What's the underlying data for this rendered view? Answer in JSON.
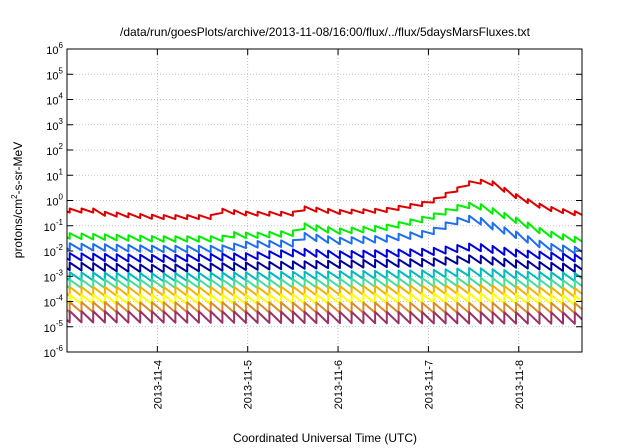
{
  "chart_data": {
    "type": "line",
    "title": "/data/run/goesPlots/archive/2013-11-08/16:00/flux/../flux/5daysMarsFluxes.txt",
    "xlabel": "Coordinated Universal Time (UTC)",
    "ylabel_parts": {
      "pre": "protons/cm",
      "sup": "2",
      "post": "-s-sr-MeV"
    },
    "x_unit": "days since 2013-11-03 00:00 UTC",
    "xlim": [
      0.0,
      5.7
    ],
    "x_ticks": [
      {
        "label": "2013-11-4",
        "value": 1.0
      },
      {
        "label": "2013-11-5",
        "value": 2.0
      },
      {
        "label": "2013-11-6",
        "value": 3.0
      },
      {
        "label": "2013-11-7",
        "value": 4.0
      },
      {
        "label": "2013-11-8",
        "value": 5.0
      }
    ],
    "y_scale": "log",
    "ylim": [
      1e-06,
      1000000.0
    ],
    "y_ticks": [
      {
        "base": "10",
        "exp": "-6",
        "value": 1e-06
      },
      {
        "base": "10",
        "exp": "-5",
        "value": 1e-05
      },
      {
        "base": "10",
        "exp": "-4",
        "value": 0.0001
      },
      {
        "base": "10",
        "exp": "-3",
        "value": 0.001
      },
      {
        "base": "10",
        "exp": "-2",
        "value": 0.01
      },
      {
        "base": "10",
        "exp": "-1",
        "value": 0.1
      },
      {
        "base": "10",
        "exp": "0",
        "value": 1
      },
      {
        "base": "10",
        "exp": "1",
        "value": 10
      },
      {
        "base": "10",
        "exp": "2",
        "value": 100
      },
      {
        "base": "10",
        "exp": "3",
        "value": 1000
      },
      {
        "base": "10",
        "exp": "4",
        "value": 10000
      },
      {
        "base": "10",
        "exp": "5",
        "value": 100000
      },
      {
        "base": "10",
        "exp": "6",
        "value": 1000000
      }
    ],
    "grid": true,
    "sawtooth_period_days": 0.13,
    "series": [
      {
        "color": "#dd0000",
        "width": 2.0,
        "knots": [
          [
            0,
            0.4
          ],
          [
            0.3,
            0.4
          ],
          [
            0.4,
            0.3
          ],
          [
            1.0,
            0.22
          ],
          [
            1.6,
            0.22
          ],
          [
            1.7,
            0.4
          ],
          [
            2.0,
            0.3
          ],
          [
            2.5,
            0.3
          ],
          [
            2.6,
            0.5
          ],
          [
            3.0,
            0.35
          ],
          [
            3.5,
            0.4
          ],
          [
            4.0,
            0.8
          ],
          [
            4.3,
            2.5
          ],
          [
            4.5,
            6.0
          ],
          [
            4.7,
            5.0
          ],
          [
            5.0,
            1.3
          ],
          [
            5.3,
            0.5
          ],
          [
            5.7,
            0.28
          ]
        ]
      },
      {
        "color": "#00ee00",
        "width": 2.0,
        "knots": [
          [
            0,
            0.04
          ],
          [
            1.0,
            0.03
          ],
          [
            1.7,
            0.03
          ],
          [
            1.9,
            0.05
          ],
          [
            2.0,
            0.04
          ],
          [
            2.5,
            0.05
          ],
          [
            2.6,
            0.1
          ],
          [
            3.0,
            0.06
          ],
          [
            3.5,
            0.08
          ],
          [
            4.0,
            0.2
          ],
          [
            4.3,
            0.5
          ],
          [
            4.5,
            0.7
          ],
          [
            4.7,
            0.4
          ],
          [
            5.0,
            0.15
          ],
          [
            5.3,
            0.05
          ],
          [
            5.7,
            0.025
          ]
        ]
      },
      {
        "color": "#1e6fee",
        "width": 2.0,
        "knots": [
          [
            0,
            0.015
          ],
          [
            1.0,
            0.012
          ],
          [
            1.7,
            0.012
          ],
          [
            2.0,
            0.018
          ],
          [
            2.5,
            0.02
          ],
          [
            2.6,
            0.04
          ],
          [
            3.0,
            0.025
          ],
          [
            3.5,
            0.03
          ],
          [
            4.0,
            0.05
          ],
          [
            4.3,
            0.15
          ],
          [
            4.5,
            0.2
          ],
          [
            4.7,
            0.1
          ],
          [
            5.0,
            0.04
          ],
          [
            5.3,
            0.015
          ],
          [
            5.7,
            0.01
          ]
        ]
      },
      {
        "color": "#0000dd",
        "width": 2.0,
        "knots": [
          [
            0,
            0.006
          ],
          [
            1.0,
            0.005
          ],
          [
            2.0,
            0.006
          ],
          [
            2.6,
            0.009
          ],
          [
            3.0,
            0.007
          ],
          [
            4.0,
            0.009
          ],
          [
            4.5,
            0.015
          ],
          [
            5.0,
            0.008
          ],
          [
            5.7,
            0.005
          ]
        ]
      },
      {
        "color": "#000099",
        "width": 2.0,
        "knots": [
          [
            0,
            0.0025
          ],
          [
            1.0,
            0.002
          ],
          [
            2.0,
            0.0025
          ],
          [
            3.0,
            0.003
          ],
          [
            4.0,
            0.0035
          ],
          [
            4.5,
            0.005
          ],
          [
            5.0,
            0.003
          ],
          [
            5.7,
            0.002
          ]
        ]
      },
      {
        "color": "#00bbbb",
        "width": 2.0,
        "knots": [
          [
            0,
            0.001
          ],
          [
            1.0,
            0.0009
          ],
          [
            2.0,
            0.001
          ],
          [
            3.0,
            0.0011
          ],
          [
            4.0,
            0.0012
          ],
          [
            4.5,
            0.0015
          ],
          [
            5.0,
            0.0011
          ],
          [
            5.7,
            0.0009
          ]
        ]
      },
      {
        "color": "#44dd99",
        "width": 2.0,
        "knots": [
          [
            0,
            0.0005
          ],
          [
            2.0,
            0.0005
          ],
          [
            4.5,
            0.0006
          ],
          [
            5.7,
            0.00045
          ]
        ]
      },
      {
        "color": "#f0b400",
        "width": 2.0,
        "knots": [
          [
            0,
            0.00025
          ],
          [
            2.0,
            0.00025
          ],
          [
            4.5,
            0.0003
          ],
          [
            5.7,
            0.00022
          ]
        ]
      },
      {
        "color": "#ffff00",
        "width": 2.0,
        "knots": [
          [
            0,
            0.00012
          ],
          [
            2.0,
            0.00012
          ],
          [
            4.5,
            0.00014
          ],
          [
            5.7,
            0.00011
          ]
        ]
      },
      {
        "color": "#d88a2a",
        "width": 2.0,
        "knots": [
          [
            0,
            6e-05
          ],
          [
            5.7,
            5.5e-05
          ]
        ]
      },
      {
        "color": "#993366",
        "width": 2.0,
        "knots": [
          [
            0,
            2.5e-05
          ],
          [
            5.7,
            2.2e-05
          ]
        ]
      }
    ]
  }
}
